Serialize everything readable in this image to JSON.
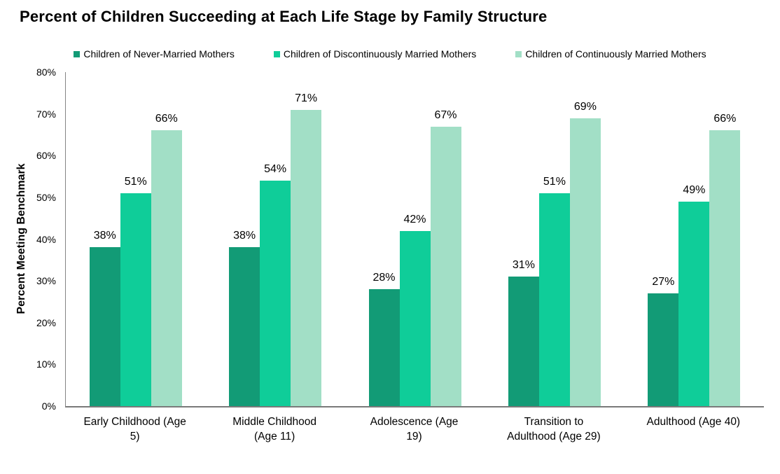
{
  "chart_data": {
    "type": "bar",
    "title": "Percent of Children Succeeding at Each Life Stage by Family Structure",
    "xlabel": "",
    "ylabel": "Percent Meeting Benchmark",
    "ylim": [
      0,
      80
    ],
    "y_ticks": [
      "0%",
      "10%",
      "20%",
      "30%",
      "40%",
      "50%",
      "60%",
      "70%",
      "80%"
    ],
    "grid": false,
    "legend_position": "top",
    "data_label_suffix": "%",
    "categories": [
      "Early Childhood (Age 5)",
      "Middle Childhood (Age 11)",
      "Adolescence (Age 19)",
      "Transition to Adulthood (Age 29)",
      "Adulthood (Age 40)"
    ],
    "category_lines": [
      [
        "Early Childhood (Age",
        "5)"
      ],
      [
        "Middle Childhood",
        "(Age 11)"
      ],
      [
        "Adolescence (Age",
        "19)"
      ],
      [
        "Transition to",
        "Adulthood (Age 29)"
      ],
      [
        "Adulthood (Age 40)"
      ]
    ],
    "series": [
      {
        "name": "Children of Never-Married Mothers",
        "color": "#129B76",
        "values": [
          38,
          38,
          28,
          31,
          27
        ]
      },
      {
        "name": "Children of Discontinuously Married Mothers",
        "color": "#0FCD99",
        "values": [
          51,
          54,
          42,
          51,
          49
        ]
      },
      {
        "name": "Children of Continuously Married Mothers",
        "color": "#A2DFC6",
        "values": [
          66,
          71,
          67,
          69,
          66
        ]
      }
    ]
  },
  "colors": {
    "background": "#FFFFFF",
    "text": "#000000",
    "axis_line": "#7A7A7A"
  }
}
